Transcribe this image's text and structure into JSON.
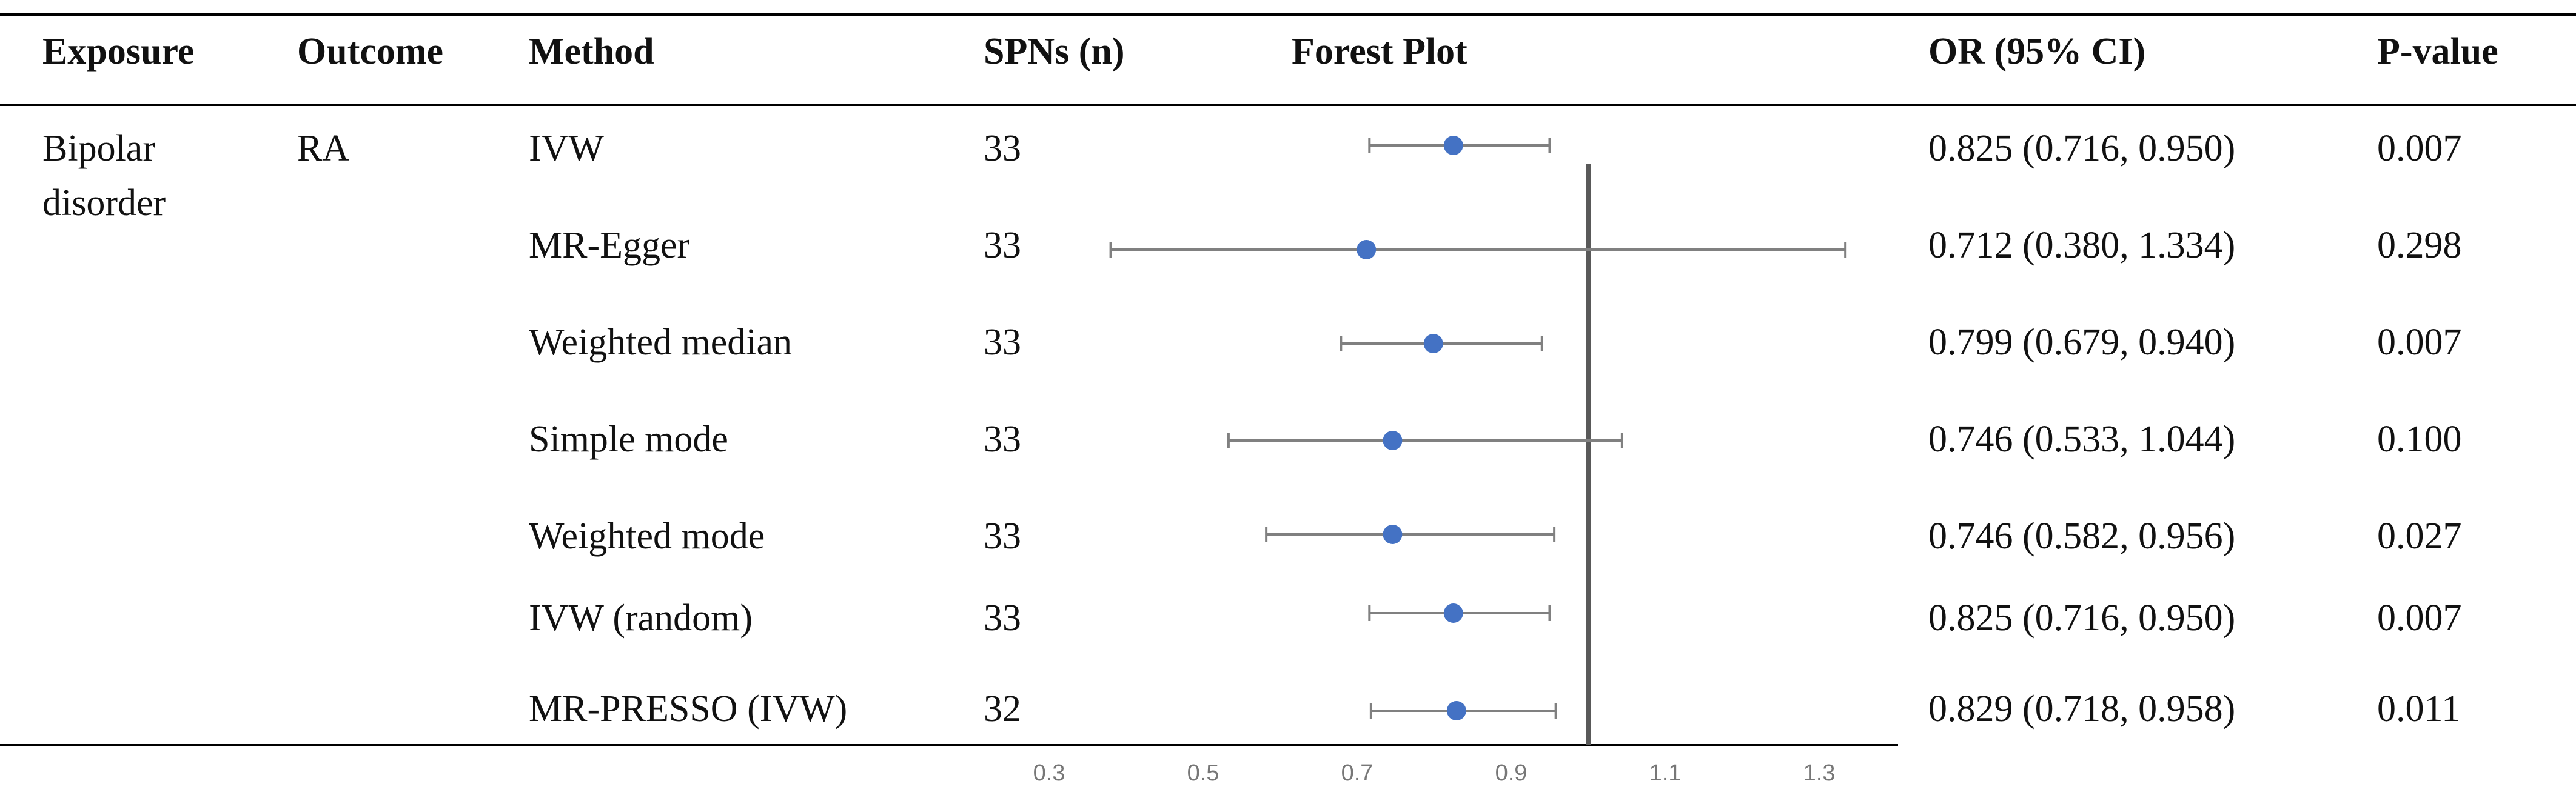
{
  "headers": {
    "exposure": "Exposure",
    "outcome": "Outcome",
    "method": "Method",
    "snps": "SPNs (n)",
    "forest": "Forest Plot",
    "or": "OR (95% CI)",
    "p": "P-value"
  },
  "exposure": [
    "Bipolar",
    "disorder"
  ],
  "outcome": "RA",
  "rows": [
    {
      "method": "IVW",
      "n": "33",
      "or_ci": "0.825 (0.716, 0.950)",
      "p": "0.007"
    },
    {
      "method": "MR-Egger",
      "n": "33",
      "or_ci": "0.712 (0.380, 1.334)",
      "p": "0.298"
    },
    {
      "method": "Weighted median",
      "n": "33",
      "or_ci": "0.799 (0.679, 0.940)",
      "p": "0.007"
    },
    {
      "method": "Simple mode",
      "n": "33",
      "or_ci": "0.746 (0.533, 1.044)",
      "p": "0.100"
    },
    {
      "method": "Weighted mode",
      "n": "33",
      "or_ci": "0.746 (0.582, 0.956)",
      "p": "0.027"
    },
    {
      "method": "IVW (random)",
      "n": "33",
      "or_ci": "0.825 (0.716, 0.950)",
      "p": "0.007"
    },
    {
      "method": "MR-PRESSO (IVW)",
      "n": "32",
      "or_ci": "0.829 (0.718, 0.958)",
      "p": "0.011"
    }
  ],
  "chart_data": {
    "type": "forest",
    "categories": [
      "IVW",
      "MR-Egger",
      "Weighted median",
      "Simple mode",
      "Weighted mode",
      "IVW (random)",
      "MR-PRESSO (IVW)"
    ],
    "estimate": [
      0.825,
      0.712,
      0.799,
      0.746,
      0.746,
      0.825,
      0.829
    ],
    "lower": [
      0.716,
      0.38,
      0.679,
      0.533,
      0.582,
      0.716,
      0.718
    ],
    "upper": [
      0.95,
      1.334,
      0.94,
      1.044,
      0.956,
      0.95,
      0.958
    ],
    "reference_line": 1.0,
    "xlim": [
      0.3,
      1.3
    ],
    "xticks": [
      "0.3",
      "0.5",
      "0.7",
      "0.9",
      "1.1",
      "1.3"
    ],
    "point_color": "#4472C4",
    "whisker_color": "#808080",
    "reference_color": "#595959"
  }
}
